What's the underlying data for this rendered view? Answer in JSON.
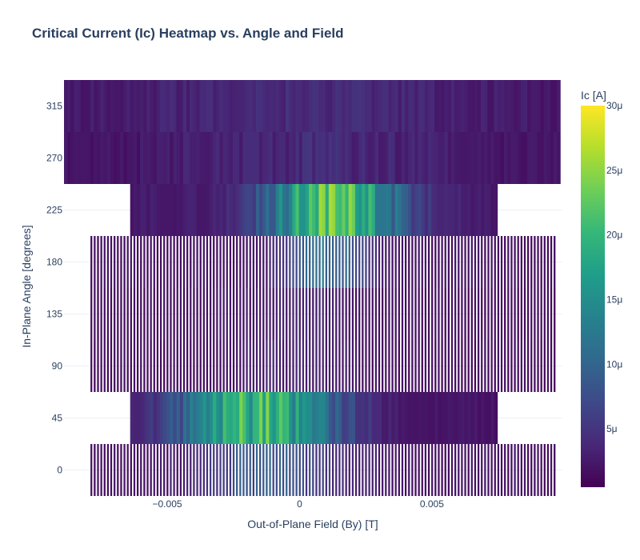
{
  "chart_data": {
    "type": "heatmap",
    "title": "Critical Current (Ic) Heatmap vs. Angle and Field",
    "xlabel": "Out-of-Plane Field (By) [T]",
    "ylabel": "In-Plane Angle [degrees]",
    "xlim": [
      -0.0089,
      0.0099
    ],
    "ylim": [
      -22.5,
      337.5
    ],
    "x_ticks": [
      {
        "value": -0.005,
        "label": "−0.005"
      },
      {
        "value": 0,
        "label": "0"
      },
      {
        "value": 0.005,
        "label": "0.005"
      }
    ],
    "y_ticks": [
      {
        "value": 0,
        "label": "0"
      },
      {
        "value": 45,
        "label": "45"
      },
      {
        "value": 90,
        "label": "90"
      },
      {
        "value": 135,
        "label": "135"
      },
      {
        "value": 180,
        "label": "180"
      },
      {
        "value": 225,
        "label": "225"
      },
      {
        "value": 270,
        "label": "270"
      },
      {
        "value": 315,
        "label": "315"
      }
    ],
    "colorscale": "Viridis",
    "colorbar": {
      "title": "Ic [A]",
      "range": [
        5e-07,
        3e-05
      ],
      "ticks": [
        {
          "value": 5e-06,
          "label": "5μ"
        },
        {
          "value": 1e-05,
          "label": "10μ"
        },
        {
          "value": 1.5e-05,
          "label": "15μ"
        },
        {
          "value": 2e-05,
          "label": "20μ"
        },
        {
          "value": 2.5e-05,
          "label": "25μ"
        },
        {
          "value": 3e-05,
          "label": "30μ"
        }
      ]
    },
    "rows": [
      {
        "angle": 0,
        "x_range": [
          -0.008,
          0.0098
        ],
        "striped": true,
        "base": 1.2,
        "peak": 10,
        "center": -0.001,
        "width": 0.0025
      },
      {
        "angle": 45,
        "x_range": [
          -0.0065,
          0.0076
        ],
        "striped": false,
        "base": 1.5,
        "peak": 25,
        "center": -0.0015,
        "width": 0.003
      },
      {
        "angle": 90,
        "x_range": [
          -0.008,
          0.0098
        ],
        "striped": true,
        "base": 1.0,
        "peak": 3,
        "center": 0.0,
        "width": 0.002
      },
      {
        "angle": 135,
        "x_range": [
          -0.008,
          0.0098
        ],
        "striped": true,
        "base": 1.0,
        "peak": 3,
        "center": 0.0,
        "width": 0.002
      },
      {
        "angle": 180,
        "x_range": [
          -0.008,
          0.0098
        ],
        "striped": true,
        "base": 1.2,
        "peak": 14,
        "center": 0.001,
        "width": 0.0015
      },
      {
        "angle": 225,
        "x_range": [
          -0.0065,
          0.0076
        ],
        "striped": false,
        "base": 2.0,
        "peak": 27,
        "center": 0.0013,
        "width": 0.0025
      },
      {
        "angle": 270,
        "x_range": [
          -0.0089,
          0.0099
        ],
        "striped": false,
        "base": 1.2,
        "peak": 4,
        "center": 0.0005,
        "width": 0.006
      },
      {
        "angle": 315,
        "x_range": [
          -0.0089,
          0.0099
        ],
        "striped": false,
        "base": 1.5,
        "peak": 4,
        "center": 0.0,
        "width": 0.007
      }
    ]
  }
}
